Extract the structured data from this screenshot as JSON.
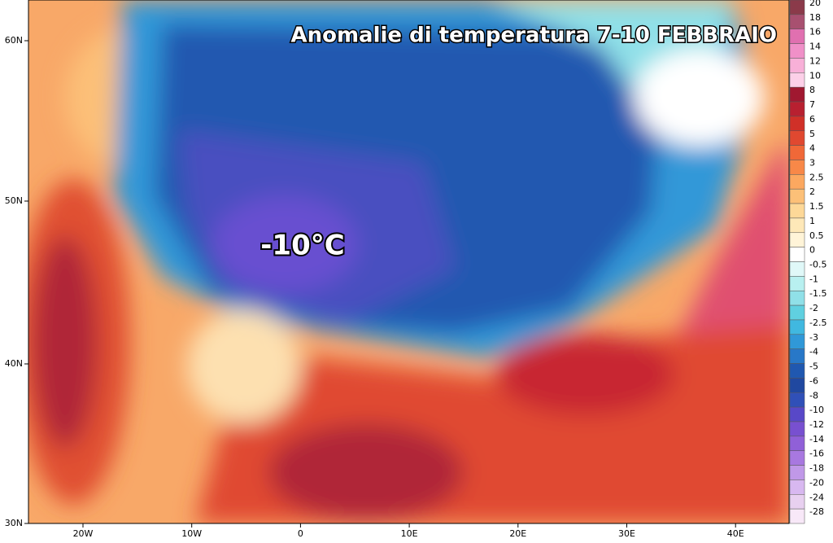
{
  "title": "Anomalie di temperatura 7-10 FEBBRAIO",
  "annotation": "-10°C",
  "latitude_labels": [
    "60N",
    "50N",
    "40N",
    "30N"
  ],
  "longitude_labels": [
    "20W",
    "10W",
    "0",
    "10E",
    "20E",
    "30E",
    "40E"
  ],
  "legend": [
    {
      "label": "20",
      "color": "#8b3a4a"
    },
    {
      "label": "18",
      "color": "#a85070"
    },
    {
      "label": "16",
      "color": "#e070b0"
    },
    {
      "label": "14",
      "color": "#f090c8"
    },
    {
      "label": "12",
      "color": "#f8b0d8"
    },
    {
      "label": "10",
      "color": "#fcd0e8"
    },
    {
      "label": "8",
      "color": "#a01830"
    },
    {
      "label": "7",
      "color": "#b82030"
    },
    {
      "label": "6",
      "color": "#d03028"
    },
    {
      "label": "5",
      "color": "#e04830"
    },
    {
      "label": "4",
      "color": "#f06838"
    },
    {
      "label": "3",
      "color": "#f88848"
    },
    {
      "label": "2.5",
      "color": "#fca860"
    },
    {
      "label": "2",
      "color": "#fcc078"
    },
    {
      "label": "1.5",
      "color": "#fdd898"
    },
    {
      "label": "1",
      "color": "#fee8b8"
    },
    {
      "label": "0.5",
      "color": "#fff4d8"
    },
    {
      "label": "0",
      "color": "#ffffff"
    },
    {
      "label": "-0.5",
      "color": "#e0f8f8"
    },
    {
      "label": "-1",
      "color": "#b8f0f0"
    },
    {
      "label": "-1.5",
      "color": "#90e0e8"
    },
    {
      "label": "-2",
      "color": "#60d0e0"
    },
    {
      "label": "-2.5",
      "color": "#40b8e0"
    },
    {
      "label": "-3",
      "color": "#3098d8"
    },
    {
      "label": "-4",
      "color": "#2878c8"
    },
    {
      "label": "-5",
      "color": "#2058b0"
    },
    {
      "label": "-6",
      "color": "#2048a0"
    },
    {
      "label": "-8",
      "color": "#3050b8"
    },
    {
      "label": "-10",
      "color": "#5848c8"
    },
    {
      "label": "-12",
      "color": "#7850d0"
    },
    {
      "label": "-14",
      "color": "#9060d8"
    },
    {
      "label": "-16",
      "color": "#a878e0"
    },
    {
      "label": "-18",
      "color": "#c098e8"
    },
    {
      "label": "-20",
      "color": "#d8b8f0"
    },
    {
      "label": "-24",
      "color": "#e8d0f0"
    },
    {
      "label": "-28",
      "color": "#f8e8f8"
    }
  ]
}
